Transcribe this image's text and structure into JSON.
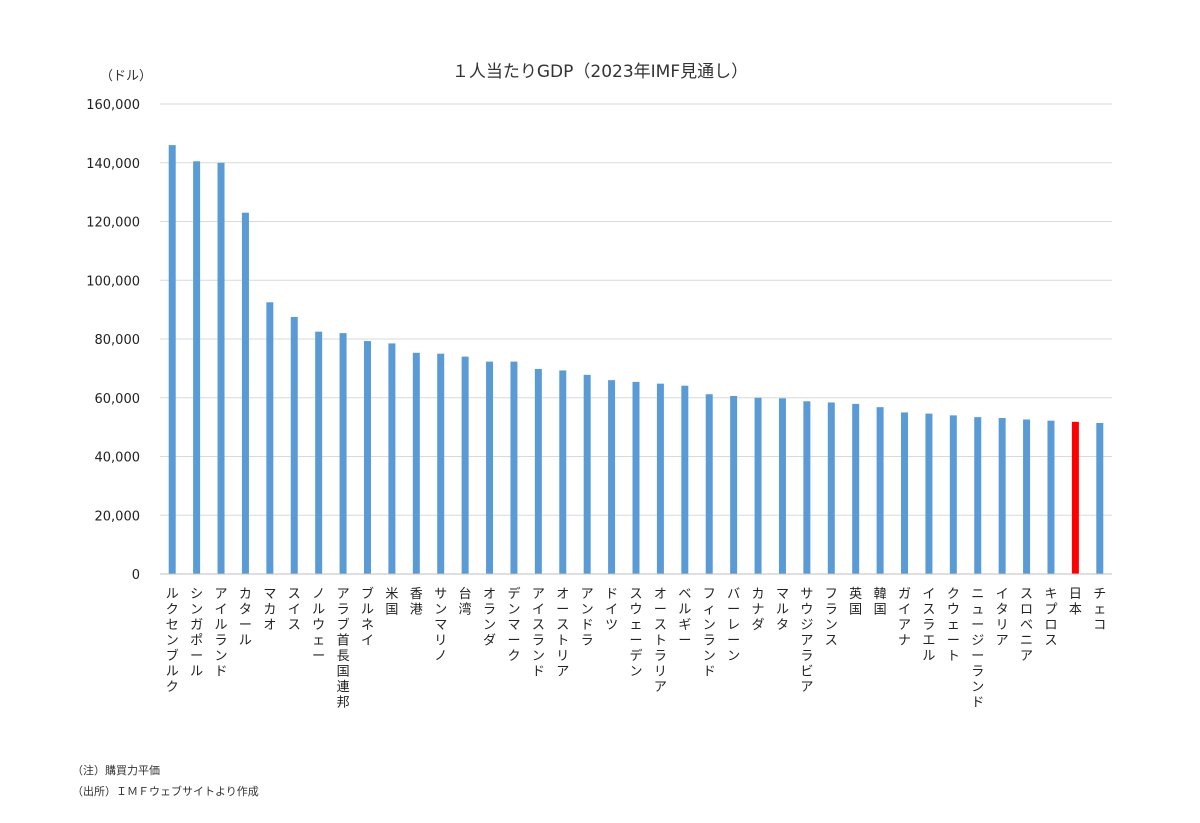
{
  "chart_data": {
    "type": "bar",
    "title": "１人当たりGDP（2023年IMF見通し）",
    "ylabel": "（ドル）",
    "xlabel": "",
    "ylim": [
      0,
      160000
    ],
    "yticks": [
      0,
      20000,
      40000,
      60000,
      80000,
      100000,
      120000,
      140000,
      160000
    ],
    "ytick_labels": [
      "0",
      "20,000",
      "40,000",
      "60,000",
      "80,000",
      "100,000",
      "120,000",
      "140,000",
      "160,000"
    ],
    "grid": true,
    "legend": "none",
    "categories": [
      "ルクセンブルク",
      "シンガポール",
      "アイルランド",
      "カタール",
      "マカオ",
      "スイス",
      "ノルウェー",
      "アラブ首長国連邦",
      "ブルネイ",
      "米国",
      "香港",
      "サンマリノ",
      "台湾",
      "オランダ",
      "デンマーク",
      "アイスランド",
      "オーストリア",
      "アンドラ",
      "ドイツ",
      "スウェーデン",
      "オーストラリア",
      "ベルギー",
      "フィンランド",
      "バーレーン",
      "カナダ",
      "マルタ",
      "サウジアラビア",
      "フランス",
      "英国",
      "韓国",
      "ガイアナ",
      "イスラエル",
      "クウェート",
      "ニュージーランド",
      "イタリア",
      "スロベニア",
      "キプロス",
      "日本",
      "チェコ"
    ],
    "series": [
      {
        "values": [
          146000,
          140500,
          140000,
          123000,
          92500,
          87500,
          82500,
          82000,
          79300,
          78500,
          75300,
          75000,
          74000,
          72300,
          72300,
          69800,
          69300,
          67800,
          66000,
          65400,
          64800,
          64100,
          61200,
          60600,
          60000,
          59800,
          58800,
          58400,
          57900,
          56800,
          55000,
          54600,
          54000,
          53400,
          53100,
          52600,
          52200,
          51800,
          51400
        ]
      }
    ],
    "colors": {
      "bar": "#5B9BD5",
      "highlight": "#FF0000",
      "grid": "#D9D9D9",
      "axis": "#BFBFBF"
    },
    "highlight_category": "日本"
  },
  "notes": {
    "note": "（注）購買力平価",
    "source": "（出所）ＩＭＦウェブサイトより作成"
  }
}
